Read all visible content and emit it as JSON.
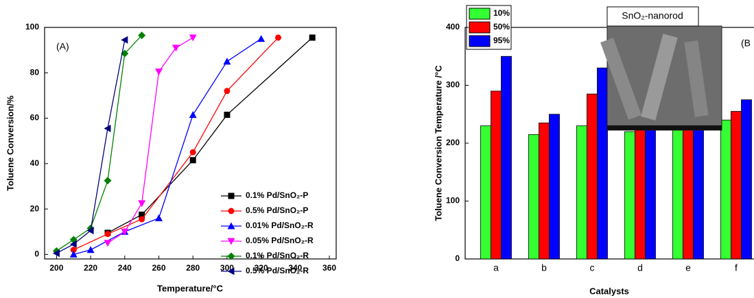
{
  "chart_data": [
    {
      "type": "line",
      "annotation": "(A)",
      "x_label": "Temperature/°C",
      "y_label": "Toluene Conversion/%",
      "xlim": [
        193,
        364
      ],
      "xticks": [
        200,
        220,
        240,
        260,
        280,
        300,
        320,
        340,
        360
      ],
      "ylim": [
        -2,
        100
      ],
      "yticks": [
        0,
        20,
        40,
        60,
        80,
        100
      ],
      "series": [
        {
          "name": "0.1% Pd/SnO₂-P",
          "color": "#000000",
          "marker": "square",
          "x": [
            230,
            250,
            280,
            300,
            350
          ],
          "values": [
            9.5,
            17.5,
            41.5,
            61.5,
            95.5
          ]
        },
        {
          "name": "0.5% Pd/SnO₂-P",
          "color": "#ff0000",
          "marker": "circle",
          "x": [
            210,
            230,
            250,
            280,
            300,
            330
          ],
          "values": [
            2,
            9,
            15.5,
            45,
            72,
            95.5
          ]
        },
        {
          "name": "0.01% Pd/SnO₂-R",
          "color": "#0000ff",
          "marker": "triangle-up",
          "x": [
            210,
            220,
            240,
            260,
            280,
            300,
            320
          ],
          "values": [
            0,
            2,
            10,
            16,
            61.5,
            85,
            95
          ]
        },
        {
          "name": "0.05% Pd/SnO₂-R",
          "color": "#ff00ff",
          "marker": "triangle-down",
          "x": [
            230,
            240,
            250,
            260,
            270,
            280
          ],
          "values": [
            5,
            10,
            22.5,
            80.5,
            91,
            95.5
          ]
        },
        {
          "name": "0.1% Pd/SnO₂-R",
          "color": "#008000",
          "marker": "diamond",
          "x": [
            200,
            210,
            220,
            230,
            240,
            250
          ],
          "values": [
            1.5,
            6.5,
            11.5,
            32.5,
            88.5,
            96.5
          ]
        },
        {
          "name": "0.5% Pd/SnO₂-R",
          "color": "#000080",
          "marker": "triangle-left",
          "x": [
            200,
            210,
            220,
            230,
            240
          ],
          "values": [
            0.5,
            4.5,
            10.5,
            55.5,
            94.5
          ]
        }
      ]
    },
    {
      "type": "bar",
      "annotation": "(B",
      "inset_label": "SnO₂-nanorod",
      "x_label": "Catalysts",
      "y_label": "Toluene Conversion Temperature /°C",
      "categories": [
        "a",
        "b",
        "c",
        "d",
        "e",
        "f"
      ],
      "ylim": [
        0,
        400
      ],
      "yticks": [
        0,
        100,
        200,
        300,
        400
      ],
      "series": [
        {
          "name": "10%",
          "color": "#33ff33",
          "values": [
            230,
            215,
            230,
            220,
            240,
            240
          ]
        },
        {
          "name": "50%",
          "color": "#ff0000",
          "values": [
            290,
            235,
            285,
            230,
            275,
            255
          ]
        },
        {
          "name": "95%",
          "color": "#0000ff",
          "values": [
            350,
            250,
            330,
            240,
            320,
            275
          ]
        }
      ]
    }
  ]
}
